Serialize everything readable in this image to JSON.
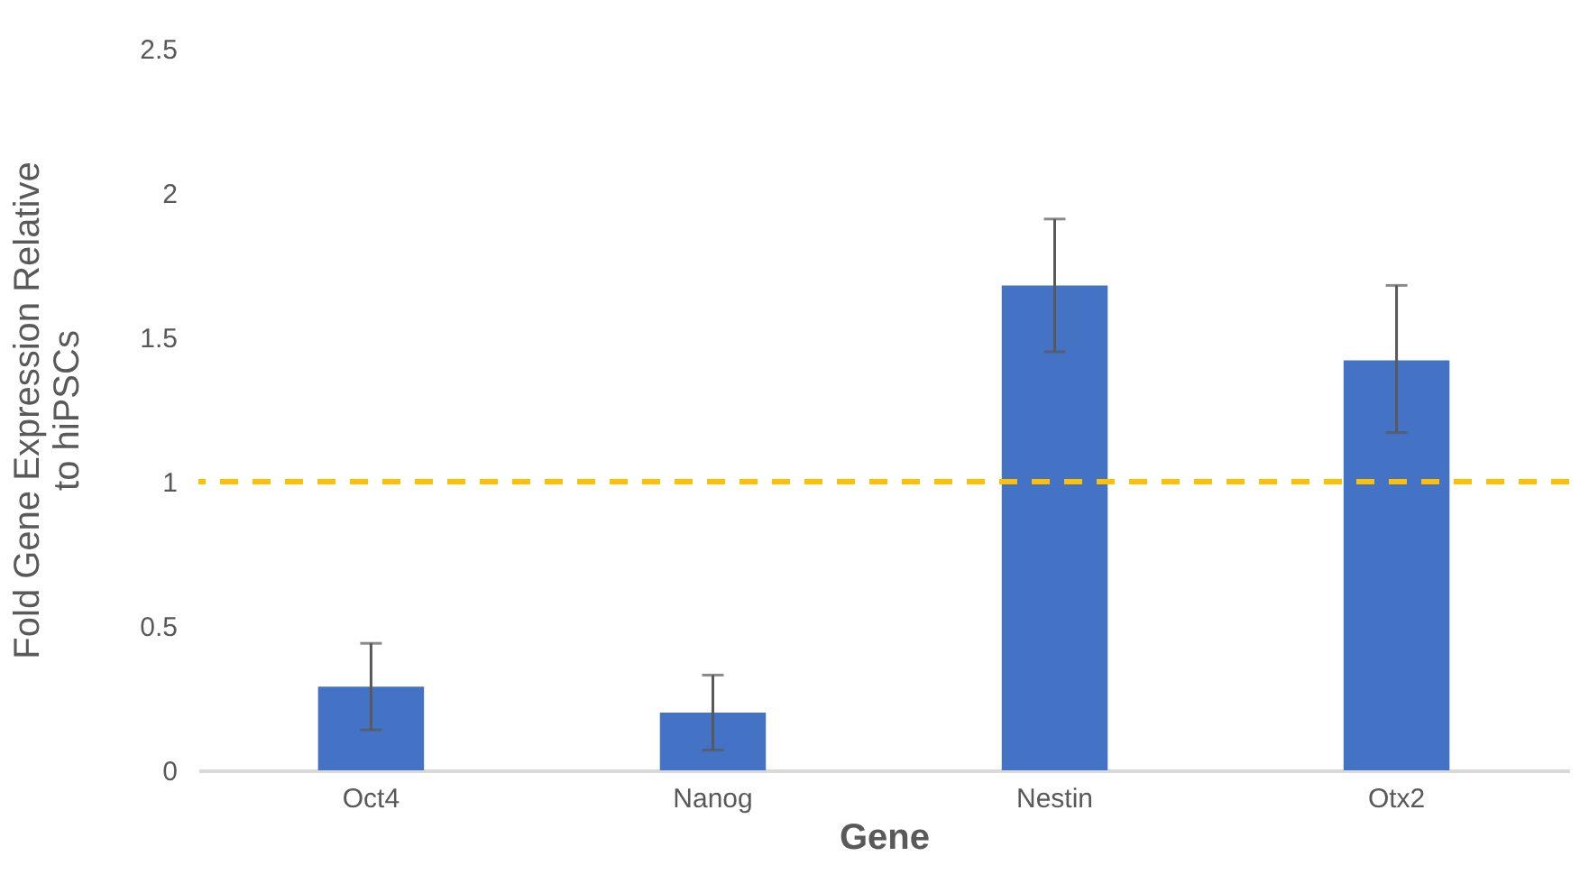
{
  "chart_data": {
    "type": "bar",
    "xlabel": "Gene",
    "ylabel": "Fold Gene Expression Relative to hiPSCs",
    "categories": [
      "Oct4",
      "Nanog",
      "Nestin",
      "Otx2"
    ],
    "values": [
      0.29,
      0.2,
      1.68,
      1.42
    ],
    "color": "#4472c4",
    "errors": [
      [
        0.14,
        0.44
      ],
      [
        0.07,
        0.33
      ],
      [
        1.45,
        1.91
      ],
      [
        1.17,
        1.68
      ]
    ],
    "ylim": [
      0,
      2.5
    ],
    "yticks": [
      0,
      0.5,
      1,
      1.5,
      2,
      2.5
    ],
    "grid": false,
    "ref_lines": [
      {
        "axis": "y",
        "value": 1,
        "color": "#ffc000",
        "line_style": "dashed"
      }
    ]
  }
}
